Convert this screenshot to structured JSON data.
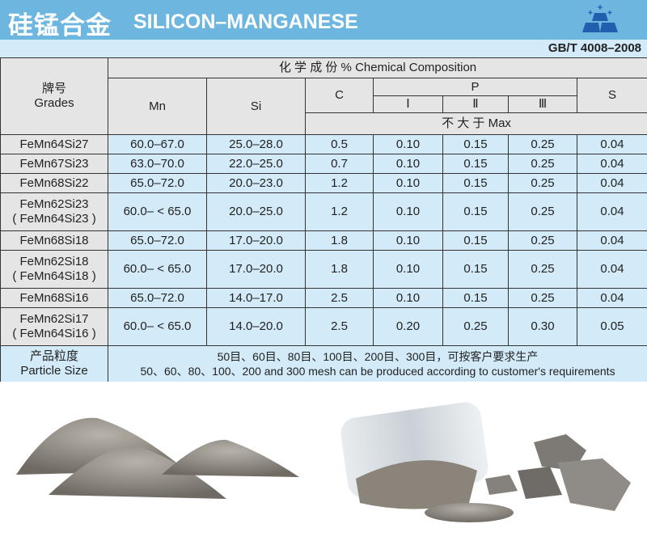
{
  "header": {
    "title_cn": "硅锰合金",
    "title_en": "SILICON–MANGANESE",
    "standard": "GB/T 4008–2008",
    "logo_icon": "metal-ingots-icon"
  },
  "table": {
    "grades_cn": "牌号",
    "grades_en": "Grades",
    "composition": "化 学 成 份 % Chemical Composition",
    "mn": "Mn",
    "si": "Si",
    "c": "C",
    "p": "P",
    "p1": "Ⅰ",
    "p2": "Ⅱ",
    "p3": "Ⅲ",
    "s": "S",
    "max": "不 大 于 Max",
    "rows": [
      {
        "grade": "FeMn64Si27",
        "alt": "",
        "mn": "60.0–67.0",
        "si": "25.0–28.0",
        "c": "0.5",
        "p1": "0.10",
        "p2": "0.15",
        "p3": "0.25",
        "s": "0.04"
      },
      {
        "grade": "FeMn67Si23",
        "alt": "",
        "mn": "63.0–70.0",
        "si": "22.0–25.0",
        "c": "0.7",
        "p1": "0.10",
        "p2": "0.15",
        "p3": "0.25",
        "s": "0.04"
      },
      {
        "grade": "FeMn68Si22",
        "alt": "",
        "mn": "65.0–72.0",
        "si": "20.0–23.0",
        "c": "1.2",
        "p1": "0.10",
        "p2": "0.15",
        "p3": "0.25",
        "s": "0.04"
      },
      {
        "grade": "FeMn62Si23",
        "alt": "( FeMn64Si23 )",
        "mn": "60.0– < 65.0",
        "si": "20.0–25.0",
        "c": "1.2",
        "p1": "0.10",
        "p2": "0.15",
        "p3": "0.25",
        "s": "0.04"
      },
      {
        "grade": "FeMn68Si18",
        "alt": "",
        "mn": "65.0–72.0",
        "si": "17.0–20.0",
        "c": "1.8",
        "p1": "0.10",
        "p2": "0.15",
        "p3": "0.25",
        "s": "0.04"
      },
      {
        "grade": "FeMn62Si18",
        "alt": "( FeMn64Si18 )",
        "mn": "60.0– < 65.0",
        "si": "17.0–20.0",
        "c": "1.8",
        "p1": "0.10",
        "p2": "0.15",
        "p3": "0.25",
        "s": "0.04"
      },
      {
        "grade": "FeMn68Si16",
        "alt": "",
        "mn": "65.0–72.0",
        "si": "14.0–17.0",
        "c": "2.5",
        "p1": "0.10",
        "p2": "0.15",
        "p3": "0.25",
        "s": "0.04"
      },
      {
        "grade": "FeMn62Si17",
        "alt": "( FeMn64Si16 )",
        "mn": "60.0– < 65.0",
        "si": "14.0–20.0",
        "c": "2.5",
        "p1": "0.20",
        "p2": "0.25",
        "p3": "0.30",
        "s": "0.05"
      }
    ],
    "particle_cn": "产品粒度",
    "particle_en": "Particle Size",
    "particle_text_cn": "50目、60目、80目、100目、200目、300目，可按客户要求生产",
    "particle_text_en": "50、60、80、100、200 and 300 mesh can be produced according to customer's requirements"
  },
  "colors": {
    "banner": "#6cb6df",
    "band": "#d3ebf8",
    "grey_cell": "#e5e5e5",
    "logo": "#1f5fae"
  }
}
